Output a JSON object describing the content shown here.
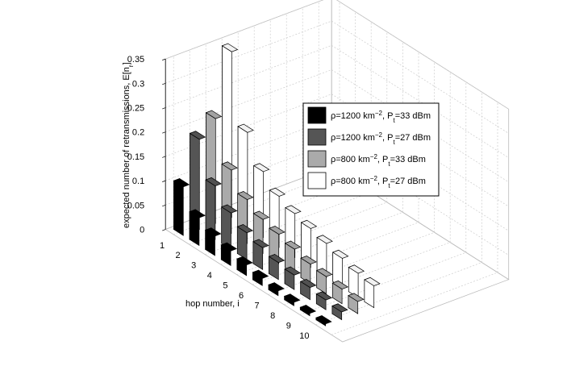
{
  "chart_data": {
    "type": "bar",
    "title": "",
    "xlabel": "hop number, i",
    "ylabel": "expected number of retransmissions, E[n",
    "ylabel_sub": "r",
    "ylabel_end": "]",
    "categories": [
      "1",
      "2",
      "3",
      "4",
      "5",
      "6",
      "7",
      "8",
      "9",
      "10"
    ],
    "zlim": [
      0,
      0.35
    ],
    "zticks": [
      "0",
      "0.05",
      "0.1",
      "0.15",
      "0.2",
      "0.25",
      "0.3",
      "0.35"
    ],
    "grid": true,
    "legend_position": "right",
    "series": [
      {
        "base": "ρ=1200 km",
        "exp": "−2",
        "mid": ", P",
        "sub": "t",
        "tail": "=33 dBm",
        "color": "#000000",
        "values": [
          0.1,
          0.057,
          0.04,
          0.03,
          0.022,
          0.015,
          0.01,
          0.007,
          0.005,
          0.004
        ]
      },
      {
        "base": "ρ=1200 km",
        "exp": "−2",
        "mid": ", P",
        "sub": "t",
        "tail": "=27 dBm",
        "color": "#555555",
        "values": [
          0.185,
          0.11,
          0.075,
          0.055,
          0.045,
          0.035,
          0.03,
          0.025,
          0.02,
          0.016
        ]
      },
      {
        "base": "ρ=800 km",
        "exp": "−2",
        "mid": ", P",
        "sub": "t",
        "tail": "=33 dBm",
        "color": "#aaaaaa",
        "values": [
          0.215,
          0.13,
          0.09,
          0.07,
          0.06,
          0.05,
          0.04,
          0.035,
          0.03,
          0.025
        ]
      },
      {
        "base": "ρ=800 km",
        "exp": "−2",
        "mid": ", P",
        "sub": "t",
        "tail": "=27 dBm",
        "color": "#ffffff",
        "values": [
          0.34,
          0.195,
          0.135,
          0.105,
          0.09,
          0.08,
          0.07,
          0.06,
          0.05,
          0.045
        ]
      }
    ]
  }
}
